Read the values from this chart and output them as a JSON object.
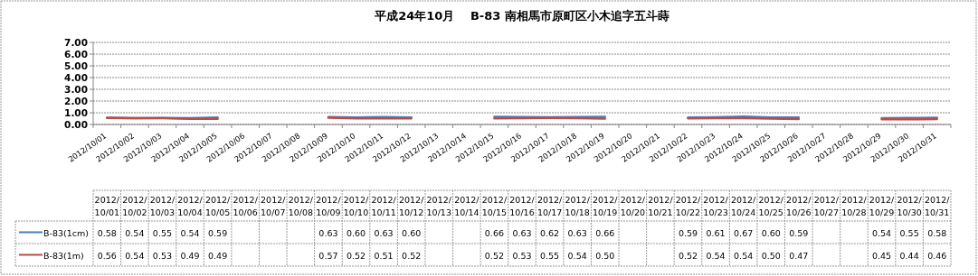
{
  "chart_data": {
    "type": "line",
    "title": "平成24年10月　 B-83 南相馬市原町区小木追字五斗蒔",
    "categories": [
      "2012/10/01",
      "2012/10/02",
      "2012/10/03",
      "2012/10/04",
      "2012/10/05",
      "2012/10/06",
      "2012/10/07",
      "2012/10/08",
      "2012/10/09",
      "2012/10/10",
      "2012/10/11",
      "2012/10/12",
      "2012/10/13",
      "2012/10/14",
      "2012/10/15",
      "2012/10/16",
      "2012/10/17",
      "2012/10/18",
      "2012/10/19",
      "2012/10/20",
      "2012/10/21",
      "2012/10/22",
      "2012/10/23",
      "2012/10/24",
      "2012/10/25",
      "2012/10/26",
      "2012/10/27",
      "2012/10/28",
      "2012/10/29",
      "2012/10/30",
      "2012/10/31"
    ],
    "series": [
      {
        "name": "B-83(1cm)",
        "color": "#4a7ebb",
        "values": [
          0.58,
          0.54,
          0.55,
          0.54,
          0.59,
          null,
          null,
          null,
          0.63,
          0.6,
          0.63,
          0.6,
          null,
          null,
          0.66,
          0.63,
          0.62,
          0.63,
          0.66,
          null,
          null,
          0.59,
          0.61,
          0.67,
          0.6,
          0.59,
          null,
          null,
          0.54,
          0.55,
          0.58
        ],
        "value_labels": [
          "0.58",
          "0.54",
          "0.55",
          "0.54",
          "0.59",
          null,
          null,
          null,
          "0.63",
          "0.60",
          "0.63",
          "0.60",
          null,
          null,
          "0.66",
          "0.63",
          "0.62",
          "0.63",
          "0.66",
          null,
          null,
          "0.59",
          "0.61",
          "0.67",
          "0.60",
          "0.59",
          null,
          null,
          "0.54",
          "0.55",
          "0.58"
        ]
      },
      {
        "name": "B-83(1m)",
        "color": "#be4b48",
        "values": [
          0.56,
          0.54,
          0.53,
          0.49,
          0.49,
          null,
          null,
          null,
          0.57,
          0.52,
          0.51,
          0.52,
          null,
          null,
          0.52,
          0.53,
          0.55,
          0.54,
          0.5,
          null,
          null,
          0.52,
          0.54,
          0.54,
          0.5,
          0.47,
          null,
          null,
          0.45,
          0.44,
          0.46
        ],
        "value_labels": [
          "0.56",
          "0.54",
          "0.53",
          "0.49",
          "0.49",
          null,
          null,
          null,
          "0.57",
          "0.52",
          "0.51",
          "0.52",
          null,
          null,
          "0.52",
          "0.53",
          "0.55",
          "0.54",
          "0.50",
          null,
          null,
          "0.52",
          "0.54",
          "0.54",
          "0.50",
          "0.47",
          null,
          null,
          "0.45",
          "0.44",
          "0.46"
        ]
      }
    ],
    "ylim": [
      0,
      7
    ],
    "yticks": [
      {
        "value": 0,
        "label": "0.00"
      },
      {
        "value": 1,
        "label": "1.00"
      },
      {
        "value": 2,
        "label": "2.00"
      },
      {
        "value": 3,
        "label": "3.00"
      },
      {
        "value": 4,
        "label": "4.00"
      },
      {
        "value": 5,
        "label": "5.00"
      },
      {
        "value": 6,
        "label": "6.00"
      },
      {
        "value": 7,
        "label": "7.00"
      }
    ],
    "grid": "y",
    "legend": "bottom"
  }
}
